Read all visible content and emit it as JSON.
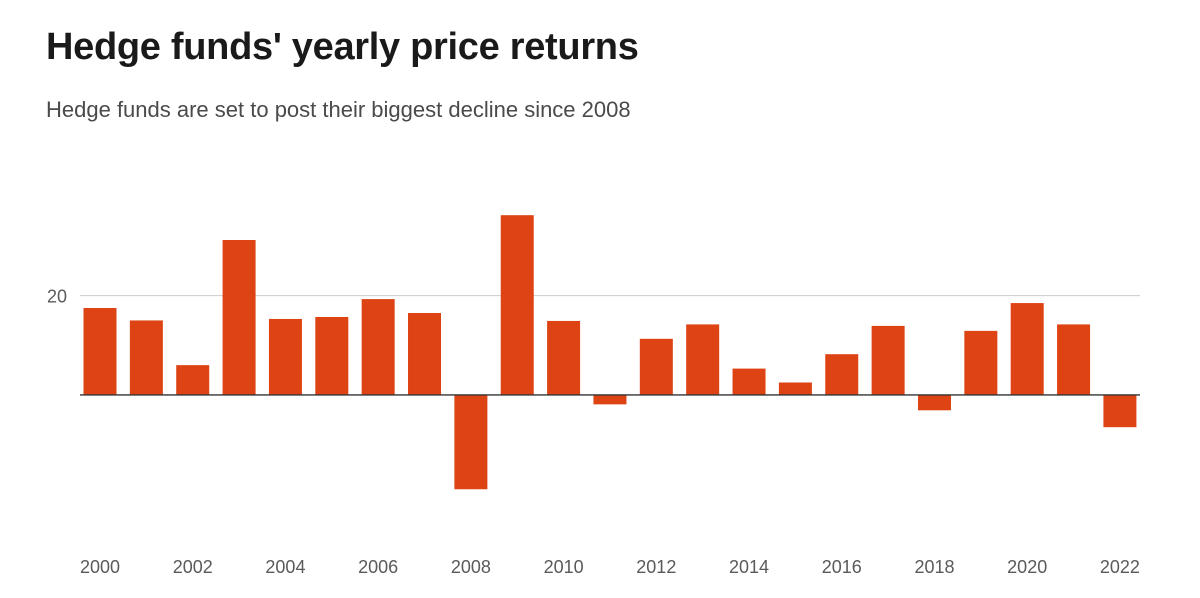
{
  "header": {
    "title": "Hedge funds' yearly price returns",
    "subtitle": "Hedge funds are set to post their biggest decline since 2008"
  },
  "chart_data": {
    "type": "bar",
    "title": "Hedge funds' yearly price returns",
    "subtitle": "Hedge funds are set to post their biggest decline since 2008",
    "xlabel": "",
    "ylabel": "",
    "categories": [
      "2000",
      "2001",
      "2002",
      "2003",
      "2004",
      "2005",
      "2006",
      "2007",
      "2008",
      "2009",
      "2010",
      "2011",
      "2012",
      "2013",
      "2014",
      "2015",
      "2016",
      "2017",
      "2018",
      "2019",
      "2020",
      "2021",
      "2022"
    ],
    "values": [
      17.5,
      15.0,
      6.0,
      31.2,
      15.3,
      15.7,
      19.3,
      16.5,
      -19.0,
      36.2,
      14.9,
      -1.9,
      11.3,
      14.2,
      5.3,
      2.5,
      8.2,
      13.9,
      -3.1,
      12.9,
      18.5,
      14.2,
      -6.5
    ],
    "x_tick_labels": [
      "2000",
      "2002",
      "2004",
      "2006",
      "2008",
      "2010",
      "2012",
      "2014",
      "2016",
      "2018",
      "2020",
      "2022"
    ],
    "y_ticks": [
      {
        "value": 20,
        "label": "20"
      }
    ],
    "ylim": [
      -26.2,
      45.3
    ],
    "grid": true,
    "colors": {
      "bar": "#de4314",
      "gridline": "#cccccc",
      "zero_line": "#333333"
    }
  }
}
